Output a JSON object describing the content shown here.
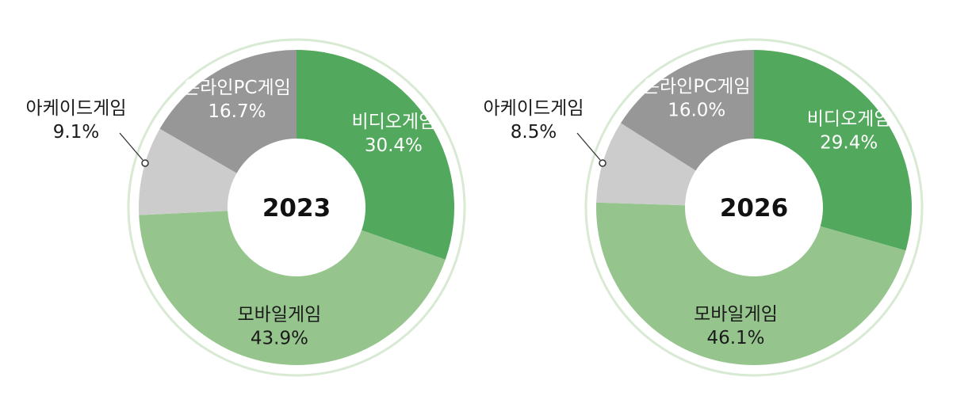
{
  "chart_data": [
    {
      "type": "pie",
      "center_label": "2023",
      "slices": [
        {
          "label": "비디오게임",
          "value": 30.4,
          "value_text": "30.4%",
          "color": "#52a85c",
          "text_color": "#ffffff"
        },
        {
          "label": "모바일게임",
          "value": 43.9,
          "value_text": "43.9%",
          "color": "#95c58d",
          "text_color": "#1a1a1a"
        },
        {
          "label": "아케이드게임",
          "value": 9.1,
          "value_text": "9.1%",
          "color": "#cccccc",
          "text_color": "#1a1a1a"
        },
        {
          "label": "온라인PC게임",
          "value": 16.7,
          "value_text": "16.7%",
          "color": "#979797",
          "text_color": "#ffffff"
        }
      ]
    },
    {
      "type": "pie",
      "center_label": "2026",
      "slices": [
        {
          "label": "비디오게임",
          "value": 29.4,
          "value_text": "29.4%",
          "color": "#52a85c",
          "text_color": "#ffffff"
        },
        {
          "label": "모바일게임",
          "value": 46.1,
          "value_text": "46.1%",
          "color": "#95c58d",
          "text_color": "#1a1a1a"
        },
        {
          "label": "아케이드게임",
          "value": 8.5,
          "value_text": "8.5%",
          "color": "#cccccc",
          "text_color": "#1a1a1a"
        },
        {
          "label": "온라인PC게임",
          "value": 16.0,
          "value_text": "16.0%",
          "color": "#979797",
          "text_color": "#ffffff"
        }
      ]
    }
  ],
  "colors": {
    "ring_outline": "#d8ead4",
    "leader_line": "#333333"
  }
}
